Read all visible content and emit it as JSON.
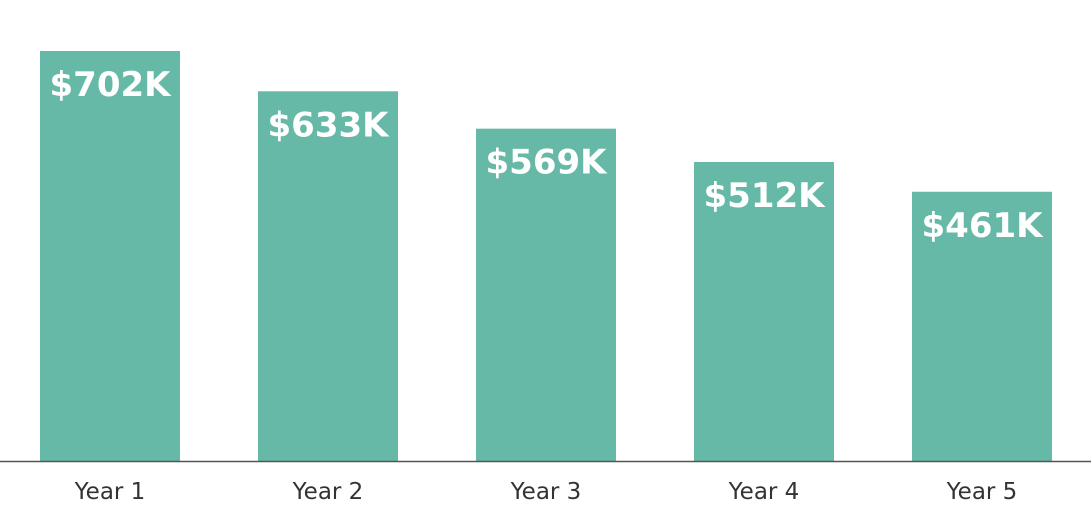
{
  "chart_data": {
    "type": "bar",
    "title": "",
    "xlabel": "",
    "ylabel": "",
    "categories": [
      "Year 1",
      "Year 2",
      "Year 3",
      "Year 4",
      "Year 5"
    ],
    "values": [
      702,
      633,
      569,
      512,
      461
    ],
    "value_labels": [
      "$702K",
      "$633K",
      "$569K",
      "$512K",
      "$461K"
    ],
    "units": "thousands USD",
    "ylim": [
      0,
      770
    ],
    "grid": false,
    "legend": "none",
    "colors": {
      "bar": "#66b9a6",
      "baseline": "#555555",
      "label_text": "#ffffff",
      "tick_text": "#333333"
    }
  }
}
